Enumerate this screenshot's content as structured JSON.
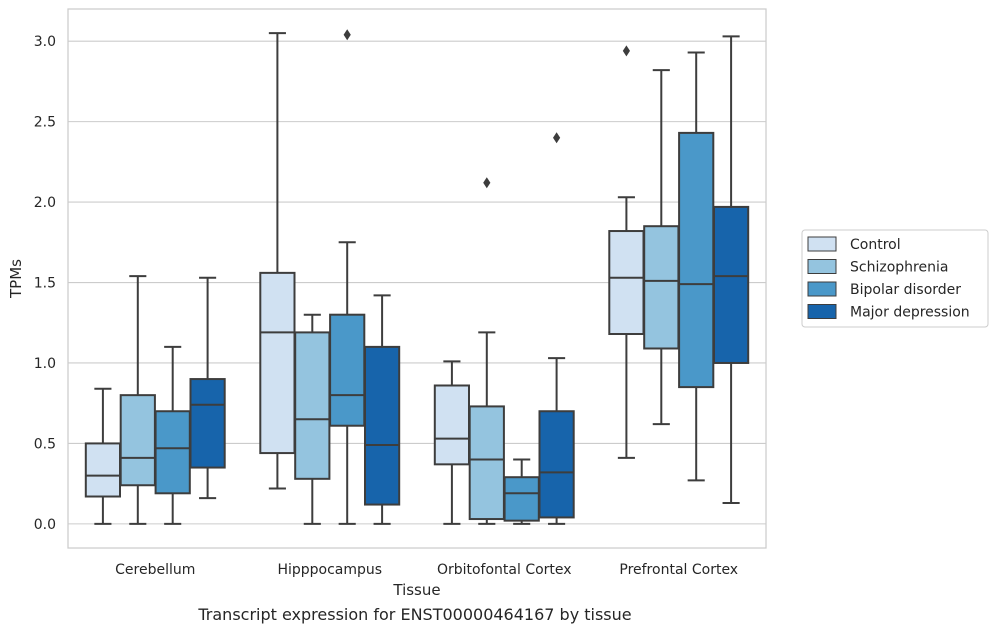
{
  "caption": "Transcript expression for ENST00000464167 by tissue",
  "chart_data": {
    "type": "box",
    "title": "",
    "xlabel": "Tissue",
    "ylabel": "TPMs",
    "ylim": [
      -0.15,
      3.2
    ],
    "yticks": [
      0.0,
      0.5,
      1.0,
      1.5,
      2.0,
      2.5,
      3.0
    ],
    "ytick_labels": [
      "0.0",
      "0.5",
      "1.0",
      "1.5",
      "2.0",
      "2.5",
      "3.0"
    ],
    "grid": "horizontal",
    "legend_position": "right",
    "categories": [
      "Cerebellum",
      "Hipppocampus",
      "Orbitofontal Cortex",
      "Prefrontal Cortex"
    ],
    "series": [
      {
        "name": "Control",
        "color": "#d0e1f2",
        "boxes": [
          {
            "whislo": 0.0,
            "q1": 0.17,
            "med": 0.3,
            "q3": 0.5,
            "whishi": 0.84,
            "fliers": []
          },
          {
            "whislo": 0.22,
            "q1": 0.44,
            "med": 1.19,
            "q3": 1.56,
            "whishi": 3.05,
            "fliers": []
          },
          {
            "whislo": 0.0,
            "q1": 0.37,
            "med": 0.53,
            "q3": 0.86,
            "whishi": 1.01,
            "fliers": []
          },
          {
            "whislo": 0.41,
            "q1": 1.18,
            "med": 1.53,
            "q3": 1.82,
            "whishi": 2.03,
            "fliers": [
              2.94
            ]
          }
        ]
      },
      {
        "name": "Schizophrenia",
        "color": "#94c4df",
        "boxes": [
          {
            "whislo": 0.0,
            "q1": 0.24,
            "med": 0.41,
            "q3": 0.8,
            "whishi": 1.54,
            "fliers": []
          },
          {
            "whislo": 0.0,
            "q1": 0.28,
            "med": 0.65,
            "q3": 1.19,
            "whishi": 1.3,
            "fliers": []
          },
          {
            "whislo": 0.0,
            "q1": 0.03,
            "med": 0.4,
            "q3": 0.73,
            "whishi": 1.19,
            "fliers": [
              2.12
            ]
          },
          {
            "whislo": 0.62,
            "q1": 1.09,
            "med": 1.51,
            "q3": 1.85,
            "whishi": 2.82,
            "fliers": []
          }
        ]
      },
      {
        "name": "Bipolar disorder",
        "color": "#4a98c9",
        "boxes": [
          {
            "whislo": 0.0,
            "q1": 0.19,
            "med": 0.47,
            "q3": 0.7,
            "whishi": 1.1,
            "fliers": []
          },
          {
            "whislo": 0.0,
            "q1": 0.61,
            "med": 0.8,
            "q3": 1.3,
            "whishi": 1.75,
            "fliers": [
              3.04
            ]
          },
          {
            "whislo": 0.0,
            "q1": 0.02,
            "med": 0.19,
            "q3": 0.29,
            "whishi": 0.4,
            "fliers": []
          },
          {
            "whislo": 0.27,
            "q1": 0.85,
            "med": 1.49,
            "q3": 2.43,
            "whishi": 2.93,
            "fliers": []
          }
        ]
      },
      {
        "name": "Major depression",
        "color": "#1764ab",
        "boxes": [
          {
            "whislo": 0.16,
            "q1": 0.35,
            "med": 0.74,
            "q3": 0.9,
            "whishi": 1.53,
            "fliers": []
          },
          {
            "whislo": 0.0,
            "q1": 0.12,
            "med": 0.49,
            "q3": 1.1,
            "whishi": 1.42,
            "fliers": []
          },
          {
            "whislo": 0.0,
            "q1": 0.04,
            "med": 0.32,
            "q3": 0.7,
            "whishi": 1.03,
            "fliers": [
              2.4
            ]
          },
          {
            "whislo": 0.13,
            "q1": 1.0,
            "med": 1.54,
            "q3": 1.97,
            "whishi": 3.03,
            "fliers": []
          }
        ]
      }
    ]
  }
}
